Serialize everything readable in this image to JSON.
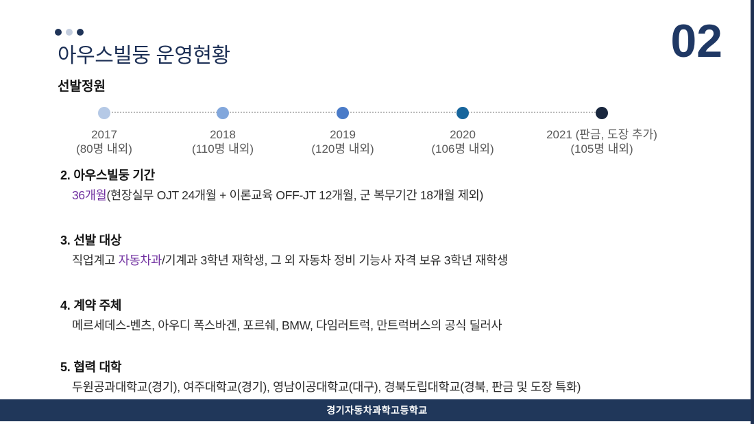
{
  "slide": {
    "title": "아우스빌둥 운영현황",
    "number": "02",
    "accent_navy": "#1f3864",
    "footer_text": "경기자동차과학고등학교",
    "footer_bg": "#20375a",
    "highlight_purple": "#7030a0"
  },
  "deco_dots": [
    {
      "color": "#1f3458"
    },
    {
      "color": "#c3cdde"
    },
    {
      "color": "#1f3458"
    }
  ],
  "timeline": {
    "label": "선발정원",
    "milestones": [
      {
        "year": "2017",
        "note": "(80명 내외)",
        "color": "#b5c9e6"
      },
      {
        "year": "2018",
        "note": "(110명 내외)",
        "color": "#82a7dc"
      },
      {
        "year": "2019",
        "note": "(120명 내외)",
        "color": "#4a7bc8"
      },
      {
        "year": "2020",
        "note": "(106명 내외)",
        "color": "#17659c"
      },
      {
        "year": "2021 (판금, 도장 추가)",
        "note": "(105명 내외)",
        "color": "#18263d"
      }
    ]
  },
  "sections": [
    {
      "num": "2.",
      "title": "아우스빌둥 기간",
      "body_pre": "",
      "highlight": "36개월",
      "body_post": "(현장실무 OJT 24개월 + 이론교육 OFF-JT 12개월, 군 복무기간 18개월 제외)"
    },
    {
      "num": "3.",
      "title": "선발 대상",
      "body_pre": "직업계고 ",
      "highlight": "자동차과",
      "body_post": "/기계과 3학년 재학생, 그 외 자동차 정비 기능사 자격 보유 3학년 재학생"
    },
    {
      "num": "4.",
      "title": "계약 주체",
      "body_pre": "메르세데스-벤츠, 아우디 폭스바겐, 포르쉐, BMW, 다임러트럭, 만트럭버스의 공식 딜러사",
      "highlight": "",
      "body_post": ""
    },
    {
      "num": "5.",
      "title": "협력 대학",
      "body_pre": "두원공과대학교(경기), 여주대학교(경기), 영남이공대학교(대구), 경북도립대학교(경북, 판금 및 도장 특화)",
      "highlight": "",
      "body_post": ""
    }
  ]
}
